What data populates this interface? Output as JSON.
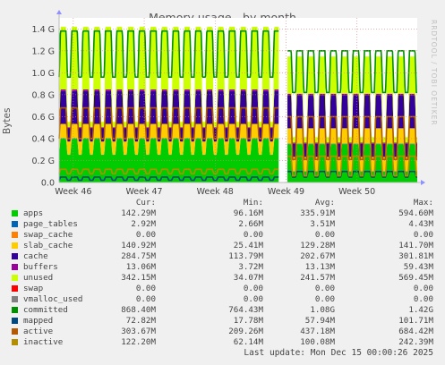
{
  "title": "Memory usage - by month",
  "ylabel": "Bytes",
  "watermark": "RRDTOOL / TOBI OETIKER",
  "last_update": "Last update: Mon Dec 15 00:00:26 2025",
  "legend_headers": {
    "cur": "Cur:",
    "min": "Min:",
    "avg": "Avg:",
    "max": "Max:"
  },
  "legend": [
    {
      "name": "apps",
      "color": "#00cc00",
      "cur": "142.29M",
      "min": "96.16M",
      "avg": "335.91M",
      "max": "594.60M"
    },
    {
      "name": "page_tables",
      "color": "#0066b3",
      "cur": "2.92M",
      "min": "2.66M",
      "avg": "3.51M",
      "max": "4.43M"
    },
    {
      "name": "swap_cache",
      "color": "#ff8000",
      "cur": "0.00",
      "min": "0.00",
      "avg": "0.00",
      "max": "0.00"
    },
    {
      "name": "slab_cache",
      "color": "#ffcc00",
      "cur": "140.92M",
      "min": "25.41M",
      "avg": "129.28M",
      "max": "141.70M"
    },
    {
      "name": "cache",
      "color": "#330099",
      "cur": "284.75M",
      "min": "113.79M",
      "avg": "202.67M",
      "max": "301.81M"
    },
    {
      "name": "buffers",
      "color": "#990099",
      "cur": "13.06M",
      "min": "3.72M",
      "avg": "13.13M",
      "max": "59.43M"
    },
    {
      "name": "unused",
      "color": "#ccff00",
      "cur": "342.15M",
      "min": "34.07M",
      "avg": "241.57M",
      "max": "569.45M"
    },
    {
      "name": "swap",
      "color": "#ff0000",
      "cur": "0.00",
      "min": "0.00",
      "avg": "0.00",
      "max": "0.00"
    },
    {
      "name": "vmalloc_used",
      "color": "#808080",
      "cur": "0.00",
      "min": "0.00",
      "avg": "0.00",
      "max": "0.00"
    },
    {
      "name": "committed",
      "color": "#008f00",
      "cur": "868.40M",
      "min": "764.43M",
      "avg": "1.08G",
      "max": "1.42G"
    },
    {
      "name": "mapped",
      "color": "#00487d",
      "cur": "72.82M",
      "min": "17.78M",
      "avg": "57.94M",
      "max": "101.71M"
    },
    {
      "name": "active",
      "color": "#b35a00",
      "cur": "303.67M",
      "min": "209.26M",
      "avg": "437.18M",
      "max": "684.42M"
    },
    {
      "name": "inactive",
      "color": "#b38f00",
      "cur": "122.20M",
      "min": "62.14M",
      "avg": "100.08M",
      "max": "242.39M"
    }
  ],
  "chart_data": {
    "type": "area",
    "title": "Memory usage - by month",
    "ylabel": "Bytes",
    "y_ticks": [
      "0.0",
      "0.2 G",
      "0.4 G",
      "0.6 G",
      "0.8 G",
      "1.0 G",
      "1.2 G",
      "1.4 G"
    ],
    "y_tick_values": [
      0,
      0.2,
      0.4,
      0.6,
      0.8,
      1.0,
      1.2,
      1.4
    ],
    "ylim": [
      0,
      1.5
    ],
    "x_ticks": [
      "Week 46",
      "Week 47",
      "Week 48",
      "Week 49",
      "Week 50"
    ],
    "x_tick_positions_week": [
      46,
      47,
      48,
      49,
      50
    ],
    "xlim_week": [
      45.8,
      50.85
    ],
    "data_gap_week": [
      48.9,
      49.02
    ],
    "grid": true,
    "stacked_series": [
      {
        "name": "apps",
        "color": "#00cc00",
        "segment1": {
          "low": 0.25,
          "high": 0.4
        },
        "segment2": {
          "low": 0.1,
          "high": 0.35
        }
      },
      {
        "name": "page_tables",
        "color": "#0066b3",
        "segment1": {
          "low": 0.003,
          "high": 0.004
        },
        "segment2": {
          "low": 0.003,
          "high": 0.004
        }
      },
      {
        "name": "slab_cache",
        "color": "#ffcc00",
        "segment1": {
          "low": 0.12,
          "high": 0.13
        },
        "segment2": {
          "low": 0.13,
          "high": 0.14
        }
      },
      {
        "name": "cache",
        "color": "#330099",
        "segment1": {
          "low": 0.12,
          "high": 0.3
        },
        "segment2": {
          "low": 0.12,
          "high": 0.3
        }
      },
      {
        "name": "buffers",
        "color": "#990099",
        "segment1": {
          "low": 0.01,
          "high": 0.015
        },
        "segment2": {
          "low": 0.01,
          "high": 0.015
        }
      },
      {
        "name": "unused",
        "color": "#ccff00",
        "segment1": {
          "low": 0.05,
          "high": 0.57
        },
        "segment2": {
          "low": 0.05,
          "high": 0.34
        }
      }
    ],
    "line_series": [
      {
        "name": "committed",
        "color": "#008f00",
        "segment1": {
          "low": 0.96,
          "high": 1.38
        },
        "segment2": {
          "low": 0.82,
          "high": 1.2
        }
      },
      {
        "name": "mapped",
        "color": "#00487d",
        "segment1": {
          "low": 0.02,
          "high": 0.05
        },
        "segment2": {
          "low": 0.05,
          "high": 0.1
        }
      },
      {
        "name": "active",
        "color": "#b35a00",
        "segment1": {
          "low": 0.4,
          "high": 0.68
        },
        "segment2": {
          "low": 0.21,
          "high": 0.6
        }
      },
      {
        "name": "inactive",
        "color": "#b38f00",
        "segment1": {
          "low": 0.08,
          "high": 0.12
        },
        "segment2": {
          "low": 0.06,
          "high": 0.24
        }
      }
    ],
    "cycles_per_week": 6.3
  }
}
